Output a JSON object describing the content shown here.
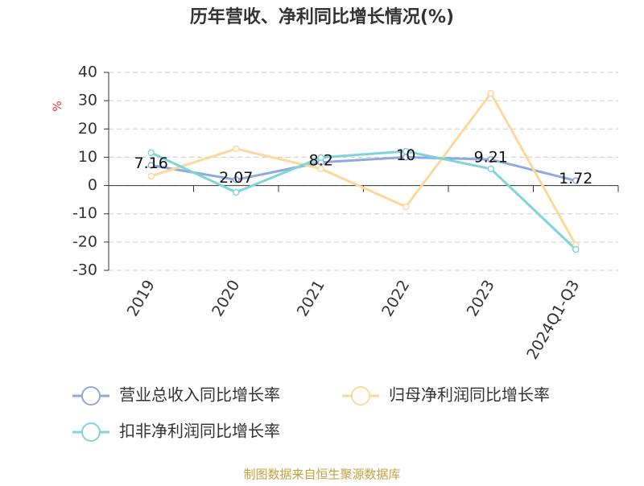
{
  "chart_data": {
    "type": "line",
    "title": "历年营收、净利同比增长情况(%)",
    "y_label": "%",
    "source": "制图数据来自恒生聚源数据库",
    "categories": [
      "2019",
      "2020",
      "2021",
      "2022",
      "2023",
      "2024Q1-Q3"
    ],
    "series": [
      {
        "name": "营业总收入同比增长率",
        "color": "#8eaadb",
        "values": [
          7.16,
          2.07,
          8.2,
          10,
          9.21,
          1.72
        ],
        "labels": true
      },
      {
        "name": "归母净利润同比增长率",
        "color": "#fcd89c",
        "values": [
          3.3,
          13,
          5.9,
          -7.5,
          32.6,
          -21
        ]
      },
      {
        "name": "扣非净利润同比增长率",
        "color": "#80d4d9",
        "values": [
          11.6,
          -2.4,
          9.9,
          12.1,
          5.9,
          -22.6
        ]
      }
    ],
    "ylim": [
      -30,
      40
    ],
    "yticks": [
      -30,
      -20,
      -10,
      0,
      10,
      20,
      30,
      40
    ],
    "grid": true
  }
}
